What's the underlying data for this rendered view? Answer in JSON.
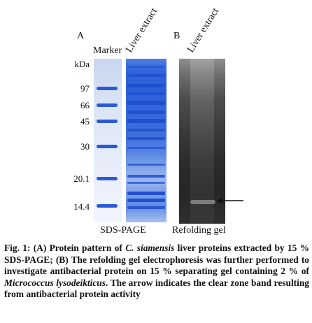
{
  "figure": {
    "panel_a": {
      "letter": "A",
      "lane_marker": "Marker",
      "lane_extract": "Liver extract",
      "unit_label": "kDa",
      "mw_markers": [
        "97",
        "66",
        "45",
        "30",
        "20.1",
        "14.4"
      ],
      "caption": "SDS-PAGE"
    },
    "panel_b": {
      "letter": "B",
      "lane_extract": "Liver extract",
      "caption": "Refolding gel",
      "arrow": "left-arrow-icon"
    }
  },
  "caption": {
    "part1": "Fig. 1: (A) Protein pattern of ",
    "species": "C. siamensis",
    "part2": " liver proteins extracted by 15 % SDS-PAGE; (B) The refolding gel electrophoresis was further performed to investigate antibacterial protein on 15 % separating gel containing 2 % of ",
    "bacterium": "Micrococcus lysodeikticus",
    "part3": ". The arrow indicates the clear zone band resulting from antibacterial protein activity"
  },
  "colors": {
    "coomassie_blue": "#2a5bd7",
    "gel_dark": "#2c2c2c"
  }
}
